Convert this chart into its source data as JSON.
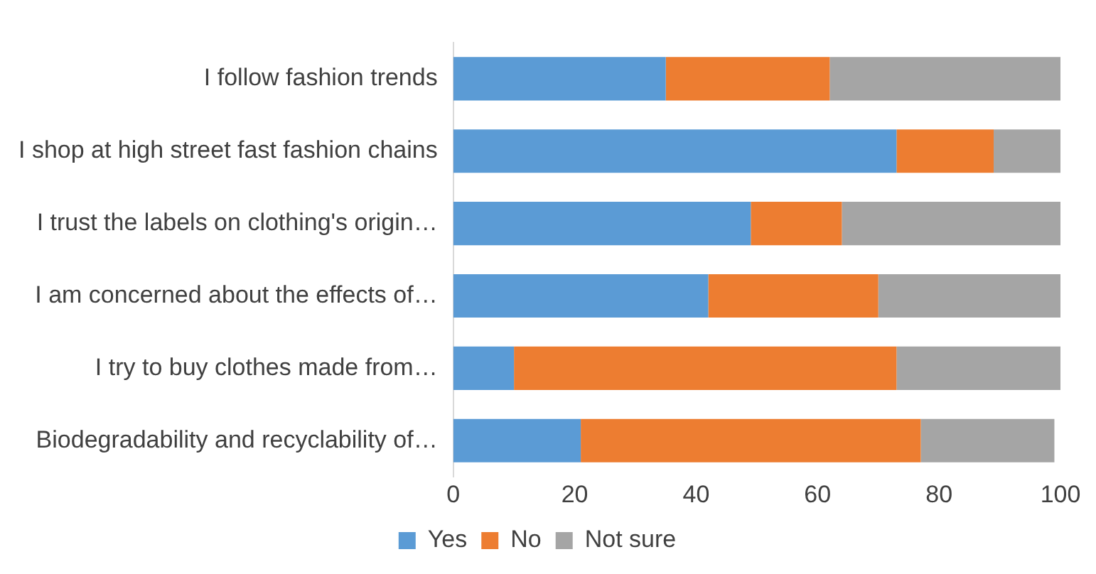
{
  "chart_data": {
    "type": "bar",
    "orientation": "horizontal",
    "stacked": true,
    "categories": [
      "I follow fashion trends",
      "I shop at high street fast fashion chains",
      "I trust the labels on clothing's origin…",
      "I am concerned about the effects of…",
      "I try to buy clothes made from…",
      "Biodegradability and recyclability of…"
    ],
    "series": [
      {
        "name": "Yes",
        "color": "#5b9bd5",
        "values": [
          35,
          73,
          49,
          42,
          10,
          21
        ]
      },
      {
        "name": "No",
        "color": "#ed7d31",
        "values": [
          27,
          16,
          15,
          28,
          63,
          56
        ]
      },
      {
        "name": "Not sure",
        "color": "#a5a5a5",
        "values": [
          38,
          11,
          36,
          30,
          27,
          22
        ]
      }
    ],
    "xlim": [
      0,
      100
    ],
    "xticks": [
      0,
      20,
      40,
      60,
      80,
      100
    ],
    "grid": false,
    "legend": "bottom"
  }
}
